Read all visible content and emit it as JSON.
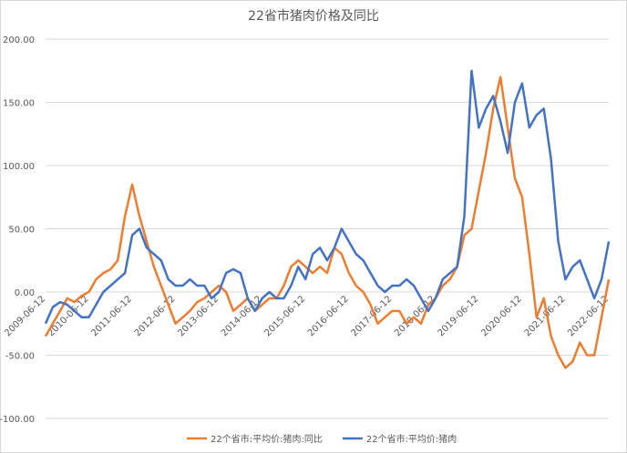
{
  "chart_data": {
    "type": "line",
    "title": "22省市猪肉价格及同比",
    "categories": [
      "2009-06-12",
      null,
      null,
      null,
      null,
      null,
      "2010-06-12",
      null,
      null,
      null,
      null,
      null,
      "2011-06-12",
      null,
      null,
      null,
      null,
      null,
      "2012-06-12",
      null,
      null,
      null,
      null,
      null,
      "2013-06-12",
      null,
      null,
      null,
      null,
      null,
      "2014-06-12",
      null,
      null,
      null,
      null,
      null,
      "2015-06-12",
      null,
      null,
      null,
      null,
      null,
      "2016-06-12",
      null,
      null,
      null,
      null,
      null,
      "2017-06-12",
      null,
      null,
      null,
      null,
      null,
      "2018-06-12",
      null,
      null,
      null,
      null,
      null,
      "2019-06-12",
      null,
      null,
      null,
      null,
      null,
      "2020-06-12",
      null,
      null,
      null,
      null,
      null,
      "2021-06-12",
      null,
      null,
      null,
      null,
      null,
      "2022-06-12"
    ],
    "series": [
      {
        "name": "22个省市:平均价:猪肉:同比",
        "color": "#ED7D31",
        "values": [
          -35,
          -25,
          -15,
          -5,
          -8,
          -3,
          0,
          10,
          15,
          18,
          25,
          60,
          85,
          60,
          40,
          20,
          5,
          -10,
          -25,
          -20,
          -15,
          -8,
          -5,
          0,
          5,
          0,
          -15,
          -10,
          -5,
          -15,
          -10,
          -5,
          -5,
          5,
          20,
          25,
          20,
          15,
          20,
          15,
          35,
          30,
          15,
          5,
          0,
          -10,
          -25,
          -20,
          -15,
          -15,
          -25,
          -20,
          -25,
          -10,
          -5,
          5,
          10,
          20,
          45,
          50,
          80,
          110,
          145,
          170,
          130,
          90,
          75,
          30,
          -20,
          -5,
          -35,
          -50,
          -60,
          -55,
          -40,
          -50,
          -50,
          -20,
          10
        ]
      },
      {
        "name": "22个省市:平均价:猪肉",
        "color": "#4472C4",
        "values": [
          -25,
          -12,
          -8,
          -10,
          -15,
          -20,
          -20,
          -10,
          0,
          5,
          10,
          15,
          45,
          50,
          35,
          30,
          25,
          10,
          5,
          5,
          10,
          5,
          5,
          -5,
          0,
          15,
          18,
          15,
          -5,
          -15,
          -5,
          0,
          -5,
          -5,
          5,
          20,
          10,
          30,
          35,
          25,
          35,
          50,
          40,
          30,
          25,
          15,
          5,
          0,
          5,
          5,
          10,
          5,
          -5,
          -15,
          -5,
          10,
          15,
          20,
          60,
          175,
          130,
          145,
          155,
          135,
          110,
          150,
          165,
          130,
          140,
          145,
          105,
          40,
          10,
          20,
          25,
          10,
          -5,
          10,
          40
        ]
      }
    ],
    "ylim": [
      -100,
      200
    ],
    "yticks": [
      {
        "value": -100,
        "label": "-100.00"
      },
      {
        "value": -50,
        "label": "-50.00"
      },
      {
        "value": 0,
        "label": "0.00"
      },
      {
        "value": 50,
        "label": "50.00"
      },
      {
        "value": 100,
        "label": "100.00"
      },
      {
        "value": 150,
        "label": "150.00"
      },
      {
        "value": 200,
        "label": "200.00"
      }
    ],
    "grid": true,
    "legend": "bottom"
  }
}
